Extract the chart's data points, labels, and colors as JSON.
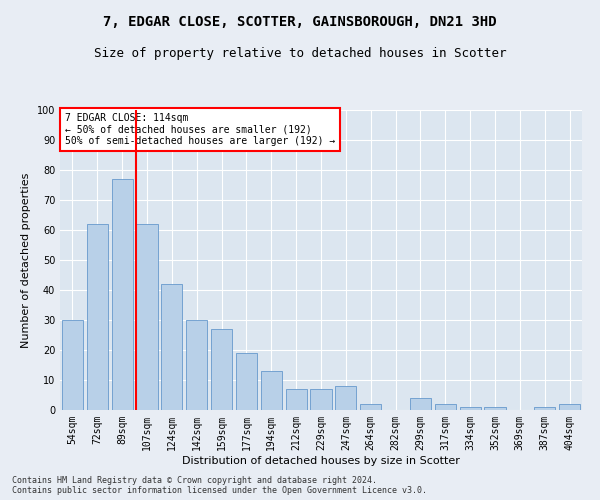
{
  "title": "7, EDGAR CLOSE, SCOTTER, GAINSBOROUGH, DN21 3HD",
  "subtitle": "Size of property relative to detached houses in Scotter",
  "xlabel": "Distribution of detached houses by size in Scotter",
  "ylabel": "Number of detached properties",
  "categories": [
    "54sqm",
    "72sqm",
    "89sqm",
    "107sqm",
    "124sqm",
    "142sqm",
    "159sqm",
    "177sqm",
    "194sqm",
    "212sqm",
    "229sqm",
    "247sqm",
    "264sqm",
    "282sqm",
    "299sqm",
    "317sqm",
    "334sqm",
    "352sqm",
    "369sqm",
    "387sqm",
    "404sqm"
  ],
  "values": [
    30,
    62,
    77,
    62,
    42,
    30,
    27,
    19,
    13,
    7,
    7,
    8,
    2,
    0,
    4,
    2,
    1,
    1,
    0,
    1,
    2
  ],
  "bar_color": "#b8d0e8",
  "bar_edge_color": "#6699cc",
  "vline_color": "red",
  "vline_index": 3,
  "annotation_text": "7 EDGAR CLOSE: 114sqm\n← 50% of detached houses are smaller (192)\n50% of semi-detached houses are larger (192) →",
  "annotation_box_color": "white",
  "annotation_box_edge": "red",
  "ylim": [
    0,
    100
  ],
  "yticks": [
    0,
    10,
    20,
    30,
    40,
    50,
    60,
    70,
    80,
    90,
    100
  ],
  "bg_color": "#e8edf4",
  "plot_bg_color": "#dce6f0",
  "grid_color": "white",
  "footnote": "Contains HM Land Registry data © Crown copyright and database right 2024.\nContains public sector information licensed under the Open Government Licence v3.0.",
  "title_fontsize": 10,
  "subtitle_fontsize": 9,
  "xlabel_fontsize": 8,
  "ylabel_fontsize": 8,
  "tick_fontsize": 7,
  "annot_fontsize": 7
}
